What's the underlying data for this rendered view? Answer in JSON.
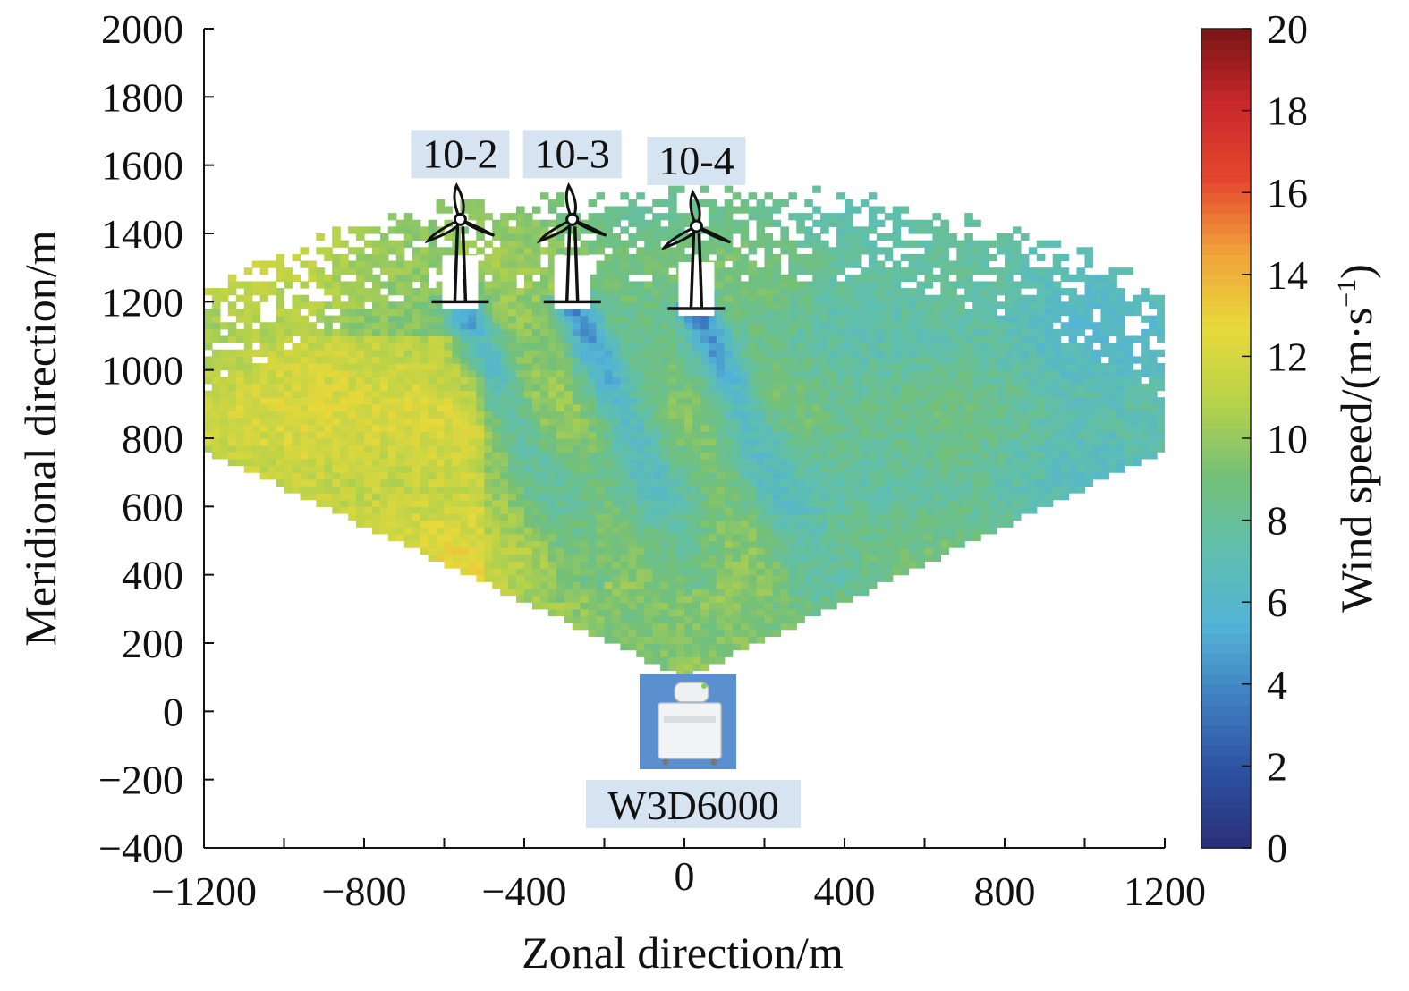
{
  "chart_data": {
    "type": "heatmap",
    "xlabel": "Zonal direction/m",
    "ylabel": "Meridional direction/m",
    "colorbar_label": "Wind speed/(m·s⁻¹)",
    "xlim": [
      -1200,
      1200
    ],
    "ylim": [
      -400,
      2000
    ],
    "x_ticks": [
      -1200,
      -800,
      -400,
      0,
      400,
      800,
      1200
    ],
    "y_ticks": [
      -400,
      -200,
      0,
      200,
      400,
      600,
      800,
      1000,
      1200,
      1400,
      1600,
      1800,
      2000
    ],
    "colorbar_range": [
      0,
      20
    ],
    "colorbar_ticks": [
      0,
      2,
      4,
      6,
      8,
      10,
      12,
      14,
      16,
      18,
      20
    ],
    "colormap": [
      "#2a2f78",
      "#2c4fa0",
      "#3f7ec0",
      "#53b3d7",
      "#5fbfae",
      "#74c077",
      "#b7d24a",
      "#e8d93a",
      "#f0a23a",
      "#e4462d",
      "#c9282b",
      "#7a1515"
    ],
    "scan_origin": [
      0,
      100
    ],
    "scan_sector_deg": [
      -61,
      61
    ],
    "scan_range_m": [
      0,
      1600
    ],
    "dominant_wind_speed_range": [
      6,
      14
    ],
    "turbines": [
      {
        "name": "10-2",
        "x": -560,
        "y": 1200
      },
      {
        "name": "10-3",
        "x": -280,
        "y": 1200
      },
      {
        "name": "10-4",
        "x": 30,
        "y": 1180
      }
    ],
    "instrument": {
      "name": "W3D6000",
      "x": 0,
      "y": 0
    }
  }
}
